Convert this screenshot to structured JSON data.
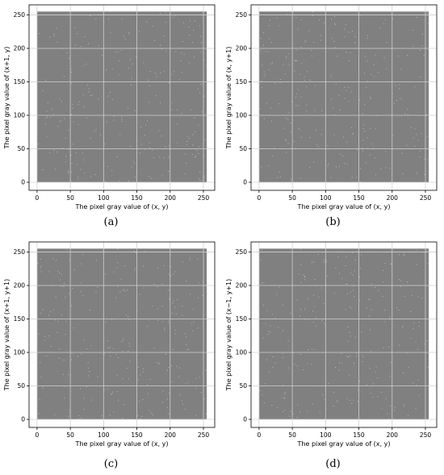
{
  "chart_data": [
    {
      "type": "scatter",
      "panel_label": "(a)",
      "xlabel": "The pixel gray value of (x, y)",
      "ylabel": "The pixel gray value of (x+1, y)",
      "xlim": [
        -12,
        267
      ],
      "ylim": [
        -12,
        265
      ],
      "xticks": [
        0,
        50,
        100,
        150,
        200,
        250
      ],
      "yticks": [
        0,
        50,
        100,
        150,
        200,
        250
      ],
      "grid": true,
      "point_color": "#808080",
      "value_range": [
        0,
        255
      ],
      "distribution": "uniform"
    },
    {
      "type": "scatter",
      "panel_label": "(b)",
      "xlabel": "The pixel gray value of (x, y)",
      "ylabel": "The pixel gray value of (x, y+1)",
      "xlim": [
        -12,
        267
      ],
      "ylim": [
        -12,
        265
      ],
      "xticks": [
        0,
        50,
        100,
        150,
        200,
        250
      ],
      "yticks": [
        0,
        50,
        100,
        150,
        200,
        250
      ],
      "grid": true,
      "point_color": "#808080",
      "value_range": [
        0,
        255
      ],
      "distribution": "uniform"
    },
    {
      "type": "scatter",
      "panel_label": "(c)",
      "xlabel": "The pixel gray value of (x, y)",
      "ylabel": "The pixel gray value of (x+1, y+1)",
      "xlim": [
        -12,
        267
      ],
      "ylim": [
        -12,
        265
      ],
      "xticks": [
        0,
        50,
        100,
        150,
        200,
        250
      ],
      "yticks": [
        0,
        50,
        100,
        150,
        200,
        250
      ],
      "grid": true,
      "point_color": "#808080",
      "value_range": [
        0,
        255
      ],
      "distribution": "uniform"
    },
    {
      "type": "scatter",
      "panel_label": "(d)",
      "xlabel": "The pixel gray value of (x, y)",
      "ylabel": "The pixel gray value of (x−1, y+1)",
      "xlim": [
        -12,
        267
      ],
      "ylim": [
        -12,
        265
      ],
      "xticks": [
        0,
        50,
        100,
        150,
        200,
        250
      ],
      "yticks": [
        0,
        50,
        100,
        150,
        200,
        250
      ],
      "grid": true,
      "point_color": "#808080",
      "value_range": [
        0,
        255
      ],
      "distribution": "uniform"
    }
  ]
}
